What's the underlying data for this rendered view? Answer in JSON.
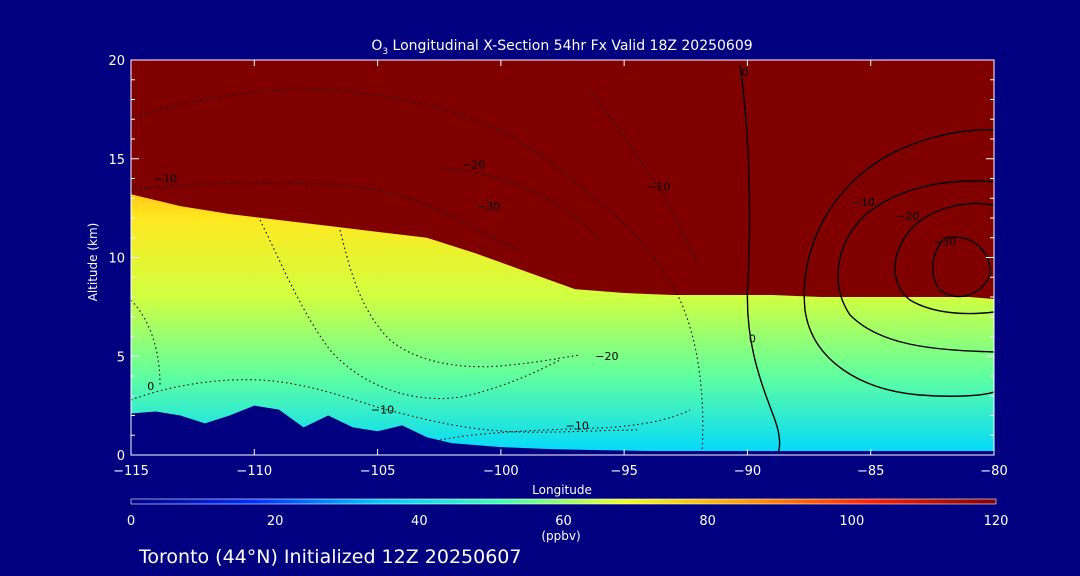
{
  "chart_data": {
    "type": "heatmap",
    "title_main": "O",
    "title_sub": "3",
    "title_rest": " Longitudinal X-Section 54hr  Fx Valid 18Z 20250609",
    "xlabel": "Longitude",
    "ylabel": "Altitude (km)",
    "xlim": [
      -115,
      -80
    ],
    "ylim": [
      0,
      20
    ],
    "xticks": [
      -115,
      -110,
      -105,
      -100,
      -95,
      -90,
      -85,
      -80
    ],
    "xtick_labels": [
      "−115",
      "−110",
      "−105",
      "−100",
      "−95",
      "−90",
      "−85",
      "−80"
    ],
    "yticks": [
      0,
      5,
      10,
      15,
      20
    ],
    "ytick_labels": [
      "0",
      "5",
      "10",
      "15",
      "20"
    ],
    "colorbar": {
      "min": 0,
      "max": 120,
      "ticks": [
        0,
        20,
        40,
        60,
        80,
        100,
        120
      ],
      "tick_labels": [
        "0",
        "20",
        "40",
        "60",
        "80",
        "100",
        "120"
      ],
      "unit": "(ppbv)",
      "colormap": [
        "#00008c",
        "#0030ff",
        "#00c8ff",
        "#40ffb0",
        "#f0ff20",
        "#ff9800",
        "#ff2000",
        "#800000"
      ]
    },
    "fields": {
      "ozone_ppbv_description_free": true,
      "tropopause_altitude_km": {
        "lon": [
          -115,
          -113,
          -111,
          -109,
          -107,
          -105,
          -103,
          -101,
          -99,
          -97,
          -95,
          -93,
          -91,
          -89,
          -87,
          -85,
          -83,
          -81,
          -80
        ],
        "alt": [
          13.2,
          12.6,
          12.2,
          11.9,
          11.6,
          11.3,
          11.0,
          10.2,
          9.3,
          8.4,
          8.2,
          8.1,
          8.1,
          8.1,
          8.0,
          8.0,
          8.0,
          8.0,
          7.9
        ]
      },
      "terrain_km": {
        "lon": [
          -115,
          -114,
          -113,
          -112,
          -111,
          -110,
          -109,
          -108,
          -107,
          -106,
          -105,
          -104,
          -103,
          -102,
          -100,
          -98,
          -96,
          -94,
          -92,
          -90,
          -88,
          -86,
          -84,
          -82,
          -80
        ],
        "alt": [
          2.1,
          2.2,
          2.0,
          1.6,
          2.0,
          2.5,
          2.3,
          1.4,
          2.0,
          1.4,
          1.2,
          1.5,
          0.9,
          0.6,
          0.4,
          0.3,
          0.25,
          0.2,
          0.2,
          0.2,
          0.2,
          0.2,
          0.2,
          0.2,
          0.2
        ]
      },
      "contour_labels": [
        {
          "text": "0",
          "lon": -90.1,
          "alt": 19.2
        },
        {
          "text": "−10",
          "lon": -113.6,
          "alt": 13.8
        },
        {
          "text": "−20",
          "lon": -101.1,
          "alt": 14.5
        },
        {
          "text": "−30",
          "lon": -100.5,
          "alt": 12.4
        },
        {
          "text": "−10",
          "lon": -93.6,
          "alt": 13.4
        },
        {
          "text": "−10",
          "lon": -85.3,
          "alt": 12.6
        },
        {
          "text": "−20",
          "lon": -83.5,
          "alt": 11.9
        },
        {
          "text": "−30",
          "lon": -82.0,
          "alt": 10.6
        },
        {
          "text": "0",
          "lon": -89.8,
          "alt": 5.7
        },
        {
          "text": "−20",
          "lon": -95.7,
          "alt": 4.8
        },
        {
          "text": "−10",
          "lon": -104.8,
          "alt": 2.1
        },
        {
          "text": "−10",
          "lon": -96.9,
          "alt": 1.3
        },
        {
          "text": "0",
          "lon": -114.2,
          "alt": 3.3
        }
      ]
    }
  },
  "footer": {
    "location_line": "Toronto (44°N) Initialized 12Z 20250607"
  }
}
